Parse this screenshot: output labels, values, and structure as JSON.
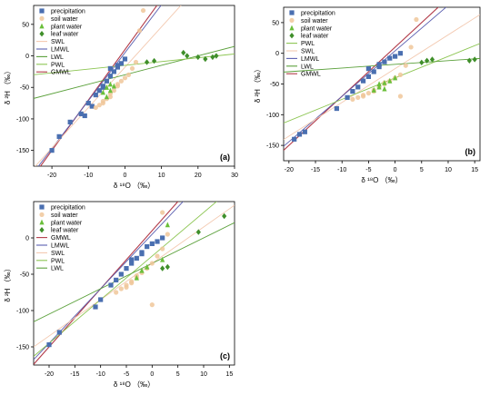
{
  "figure": {
    "colors": {
      "precipitation": "#4a6fb0",
      "soil_water": "#f0c79a",
      "plant_water": "#6abf3a",
      "leaf_water": "#3f8f2a",
      "GMWL": "#b23a48",
      "LMWL": "#5a5fb0",
      "SWL": "#f3c9b0",
      "PWL": "#8cc552",
      "LWL": "#5aa03a"
    }
  },
  "chart_data": [
    {
      "panel": "(a)",
      "type": "scatter",
      "xlabel": "δ ¹⁸O （‰）",
      "ylabel": "δ ²H （‰）",
      "xlim": [
        -25,
        30
      ],
      "ylim": [
        -175,
        80
      ],
      "xticks": [
        -20,
        -10,
        0,
        10,
        20,
        30
      ],
      "yticks": [
        -150,
        -100,
        -50,
        0,
        50
      ],
      "legend": [
        "precipitation",
        "soil water",
        "plant water",
        "leaf water",
        "SWL",
        "LMWL",
        "LWL",
        "PWL",
        "GMWL"
      ],
      "legend_placement": "top-left",
      "series": [
        {
          "name": "precipitation",
          "marker": "square",
          "x": [
            -20,
            -18,
            -15,
            -12,
            -10,
            -8,
            -7,
            -6,
            -5,
            -4,
            -3,
            -2,
            -1,
            0,
            -6,
            -4,
            -2,
            -9,
            -11
          ],
          "y": [
            -150,
            -128,
            -105,
            -92,
            -75,
            -62,
            -55,
            -48,
            -40,
            -32,
            -25,
            -18,
            -12,
            -5,
            -50,
            -20,
            -15,
            -80,
            -95
          ]
        },
        {
          "name": "soil water",
          "marker": "circle",
          "x": [
            -8,
            -7,
            -6,
            -5,
            -4,
            -3,
            -2,
            -1,
            0,
            2,
            3,
            4,
            5,
            -6,
            -4,
            -2,
            1
          ],
          "y": [
            -82,
            -78,
            -72,
            -68,
            -60,
            -55,
            -48,
            -40,
            -35,
            -20,
            -10,
            40,
            72,
            -75,
            -65,
            -45,
            -30
          ]
        },
        {
          "name": "plant water",
          "marker": "triangle",
          "x": [
            -6,
            -5,
            -4,
            -5,
            -3,
            -4
          ],
          "y": [
            -58,
            -50,
            -45,
            -65,
            -48,
            -55
          ]
        },
        {
          "name": "leaf water",
          "marker": "diamond",
          "x": [
            6,
            8,
            16,
            17,
            20,
            22,
            24,
            25
          ],
          "y": [
            -10,
            -8,
            5,
            0,
            -2,
            -5,
            -2,
            0
          ]
        }
      ],
      "lines": [
        {
          "name": "GMWL",
          "slope": 8,
          "intercept": 10
        },
        {
          "name": "LMWL",
          "slope": 7.6,
          "intercept": 5
        },
        {
          "name": "SWL",
          "slope": 6.4,
          "intercept": -18
        },
        {
          "name": "LWL",
          "slope": 1.5,
          "intercept": -30
        },
        {
          "name": "PWL",
          "slope": 0.6,
          "intercept": -15
        }
      ]
    },
    {
      "panel": "(b)",
      "type": "scatter",
      "xlabel": "δ ¹⁸O （‰）",
      "ylabel": "δ ²H （‰）",
      "xlim": [
        -21,
        16
      ],
      "ylim": [
        -175,
        75
      ],
      "xticks": [
        -20,
        -15,
        -10,
        -5,
        0,
        5,
        10,
        15
      ],
      "yticks": [
        -150,
        -100,
        -50,
        0,
        50
      ],
      "legend": [
        "precipitation",
        "soil water",
        "plant water",
        "leaf water",
        "PWL",
        "SWL",
        "LMWL",
        "LWL",
        "GMWL"
      ],
      "legend_placement": "top-left",
      "series": [
        {
          "name": "precipitation",
          "marker": "square",
          "x": [
            -19,
            -18,
            -17,
            -11,
            -9,
            -8,
            -7,
            -6,
            -5,
            -4,
            -3,
            -2,
            -1,
            0,
            1,
            -5,
            -3
          ],
          "y": [
            -140,
            -132,
            -128,
            -90,
            -72,
            -62,
            -55,
            -45,
            -38,
            -30,
            -22,
            -14,
            -8,
            -5,
            0,
            -25,
            -18
          ]
        },
        {
          "name": "soil water",
          "marker": "circle",
          "x": [
            -8,
            -7,
            -6,
            -5,
            -4,
            -3,
            -2,
            -1,
            0,
            1,
            2,
            3,
            4,
            -6,
            -4,
            -2,
            1
          ],
          "y": [
            -75,
            -72,
            -68,
            -65,
            -60,
            -55,
            -50,
            -45,
            -40,
            -35,
            -20,
            10,
            55,
            -70,
            -62,
            -48,
            -70
          ]
        },
        {
          "name": "plant water",
          "marker": "triangle",
          "x": [
            -4,
            -3,
            -2,
            -1,
            0,
            -3,
            -2
          ],
          "y": [
            -60,
            -55,
            -48,
            -45,
            -40,
            -50,
            -58
          ]
        },
        {
          "name": "leaf water",
          "marker": "diamond",
          "x": [
            5,
            6,
            7,
            14,
            15
          ],
          "y": [
            -15,
            -12,
            -10,
            -12,
            -10
          ]
        }
      ],
      "lines": [
        {
          "name": "GMWL",
          "slope": 8,
          "intercept": 10
        },
        {
          "name": "LMWL",
          "slope": 7.4,
          "intercept": 4
        },
        {
          "name": "SWL",
          "slope": 5.5,
          "intercept": -25
        },
        {
          "name": "PWL",
          "slope": 3.5,
          "intercept": -40
        },
        {
          "name": "LWL",
          "slope": 0.6,
          "intercept": -18
        }
      ]
    },
    {
      "panel": "(c)",
      "type": "scatter",
      "xlabel": "δ ¹⁸O （‰）",
      "ylabel": "δ ²H （‰）",
      "xlim": [
        -23,
        16
      ],
      "ylim": [
        -175,
        50
      ],
      "xticks": [
        -20,
        -15,
        -10,
        -5,
        0,
        5,
        10,
        15
      ],
      "yticks": [
        -150,
        -100,
        -50,
        0
      ],
      "legend": [
        "precipitation",
        "soil water",
        "plant water",
        "leaf water",
        "GMWL",
        "LMWL",
        "SWL",
        "PWL",
        "LWL"
      ],
      "legend_placement": "top-left",
      "series": [
        {
          "name": "precipitation",
          "marker": "square",
          "x": [
            -20,
            -18,
            -11,
            -10,
            -8,
            -7,
            -6,
            -5,
            -4,
            -3,
            -2,
            -1,
            0,
            1,
            2,
            -4,
            -2
          ],
          "y": [
            -147,
            -130,
            -95,
            -85,
            -65,
            -58,
            -50,
            -42,
            -35,
            -28,
            -20,
            -12,
            -8,
            -5,
            0,
            -30,
            -22
          ]
        },
        {
          "name": "soil water",
          "marker": "circle",
          "x": [
            -7,
            -6,
            -5,
            -4,
            -3,
            -2,
            -1,
            0,
            1,
            2,
            3,
            -5,
            -4,
            -3,
            0,
            2
          ],
          "y": [
            -75,
            -70,
            -68,
            -62,
            -55,
            -48,
            -42,
            -35,
            -25,
            -15,
            5,
            -65,
            -60,
            -52,
            -92,
            35
          ]
        },
        {
          "name": "plant water",
          "marker": "triangle",
          "x": [
            -3,
            -2,
            2,
            3,
            -1
          ],
          "y": [
            -55,
            -45,
            -30,
            18,
            -40
          ]
        },
        {
          "name": "leaf water",
          "marker": "diamond",
          "x": [
            2,
            3,
            9,
            14
          ],
          "y": [
            -42,
            -40,
            8,
            30
          ]
        }
      ],
      "lines": [
        {
          "name": "GMWL",
          "slope": 8,
          "intercept": 10
        },
        {
          "name": "LMWL",
          "slope": 7.5,
          "intercept": 5
        },
        {
          "name": "SWL",
          "slope": 5.0,
          "intercept": -35
        },
        {
          "name": "PWL",
          "slope": 6.0,
          "intercept": -25
        },
        {
          "name": "LWL",
          "slope": 3.5,
          "intercept": -35
        }
      ]
    }
  ]
}
